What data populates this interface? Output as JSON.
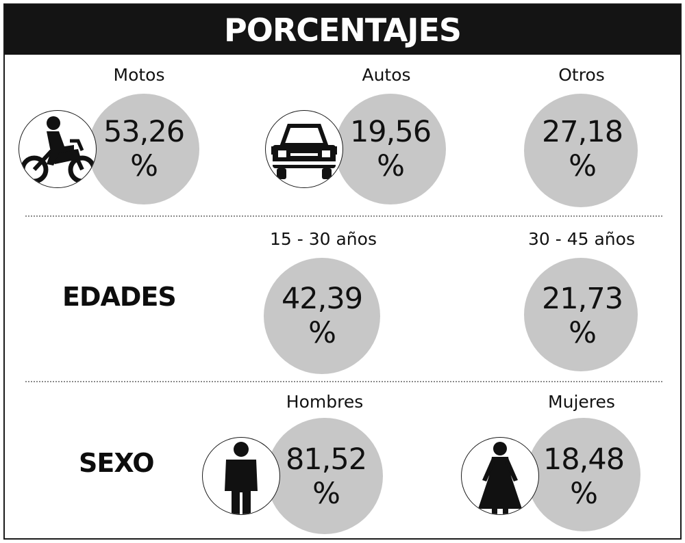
{
  "header": {
    "title": "PORCENTAJES"
  },
  "chart_data": [
    {
      "type": "table",
      "title": "",
      "categories": [
        "Motos",
        "Autos",
        "Otros"
      ],
      "values": [
        "53,26",
        "19,56",
        "27,18"
      ],
      "unit": "%"
    },
    {
      "type": "table",
      "title": "EDADES",
      "categories": [
        "15 - 30 años",
        "30 - 45 años"
      ],
      "values": [
        "42,39",
        "21,73"
      ],
      "unit": "%"
    },
    {
      "type": "table",
      "title": "SEXO",
      "categories": [
        "Hombres",
        "Mujeres"
      ],
      "values": [
        "81,52",
        "18,48"
      ],
      "unit": "%"
    }
  ],
  "icons": {
    "motorcycle": "motorcycle-rider-icon",
    "car": "car-icon",
    "man": "man-icon",
    "woman": "woman-icon"
  },
  "colors": {
    "header_bg": "#141414",
    "circle": "#c7c7c7",
    "text": "#111111"
  }
}
